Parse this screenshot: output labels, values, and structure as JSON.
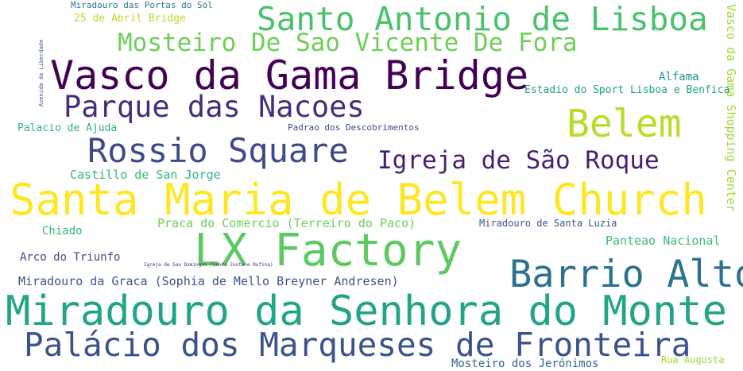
{
  "words": {
    "miradouro_portas_sol": {
      "text": "Miradouro das Portas do Sol",
      "color": "#2a788e"
    },
    "abril_bridge": {
      "text": "25 de Abril Bridge",
      "color": "#b5de2b"
    },
    "santo_antonio": {
      "text": "Santo Antonio de Lisboa",
      "color": "#4ac16d"
    },
    "mosteiro_vicente": {
      "text": "Mosteiro De Sao Vicente De Fora",
      "color": "#6ece58"
    },
    "vasco_gama_bridge": {
      "text": "Vasco da Gama Bridge",
      "color": "#440154"
    },
    "avenida_liberdade": {
      "text": "Avenida da Liberdade",
      "color": "#3b528b"
    },
    "alfama": {
      "text": "Alfama",
      "color": "#21918c"
    },
    "vasco_shopping": {
      "text": "Vasco da Gama Shopping Center",
      "color": "#a0da39"
    },
    "estadio": {
      "text": "Estadio do Sport Lisboa e Benfica",
      "color": "#1fa187"
    },
    "parque_nacoes": {
      "text": "Parque das Nacoes",
      "color": "#472d7b"
    },
    "belem": {
      "text": "Belem",
      "color": "#b5de2b"
    },
    "palacio_ajuda": {
      "text": "Palacio de Ajuda",
      "color": "#2fb47c"
    },
    "padrao": {
      "text": "Padrao dos Descobrimentos",
      "color": "#3e4a89"
    },
    "rossio": {
      "text": "Rossio Square",
      "color": "#3e4a89"
    },
    "igreja_sao_roque": {
      "text": "Igreja de São Roque",
      "color": "#481f70"
    },
    "castillo": {
      "text": "Castillo de San Jorge",
      "color": "#35b779"
    },
    "santa_maria": {
      "text": "Santa Maria de Belem Church",
      "color": "#fde725"
    },
    "praca_comercio": {
      "text": "Praca do Comercio (Terreiro do Paco)",
      "color": "#6ece58"
    },
    "miradouro_santa_luzia": {
      "text": "Miradouro de Santa Luzia",
      "color": "#3b528b"
    },
    "chiado": {
      "text": "Chiado",
      "color": "#35b779"
    },
    "lx_factory": {
      "text": "LX Factory",
      "color": "#5ec962"
    },
    "panteao": {
      "text": "Panteao Nacional",
      "color": "#3bbb75"
    },
    "arco_triunfo": {
      "text": "Arco do Triunfo",
      "color": "#3e4a89"
    },
    "igreja_sao_domingos": {
      "text": "Igreja de Sao Domingos (Santa Justa e Rufina)",
      "color": "#482878"
    },
    "barrio_alto": {
      "text": "Barrio Alto",
      "color": "#2c728e"
    },
    "miradouro_graca": {
      "text": "Miradouro da Graca (Sophia de Mello Breyner Andresen)",
      "color": "#3b528b"
    },
    "miradouro_senhora": {
      "text": "Miradouro da Senhora do Monte",
      "color": "#21a585"
    },
    "palacio_marqueses": {
      "text": "Palácio dos Marqueses de Fronteira",
      "color": "#3b528b"
    },
    "rua_augusta": {
      "text": "Rua Augusta",
      "color": "#a0da39"
    },
    "mosteiro_jeronimos": {
      "text": "Mosteiro dos Jerónimos",
      "color": "#31688e"
    }
  }
}
